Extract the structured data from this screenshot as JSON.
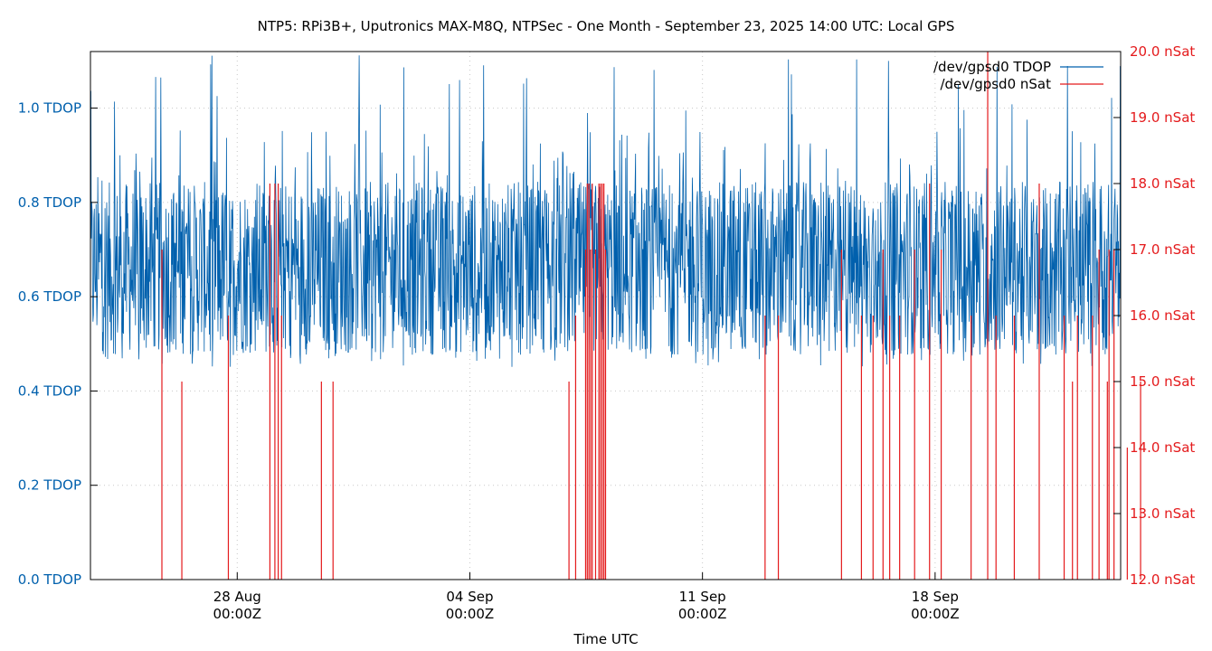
{
  "chart_data": {
    "type": "line",
    "title": "NTP5: RPi3B+, Uputronics MAX-M8Q, NTPSec - One Month - September 23, 2025 14:00 UTC: Local GPS",
    "xlabel": "Time UTC",
    "xlim": [
      "2025-08-23T14:00Z",
      "2025-09-23T14:00Z"
    ],
    "x_ticks": [
      {
        "date": "2025-08-28T00:00Z",
        "line1": "28 Aug",
        "line2": "00:00Z"
      },
      {
        "date": "2025-09-04T00:00Z",
        "line1": "04 Sep",
        "line2": "00:00Z"
      },
      {
        "date": "2025-09-11T00:00Z",
        "line1": "11 Sep",
        "line2": "00:00Z"
      },
      {
        "date": "2025-09-18T00:00Z",
        "line1": "18 Sep",
        "line2": "00:00Z"
      }
    ],
    "y_left": {
      "range": [
        0,
        1.12
      ],
      "color": "#0060ad",
      "ticks": [
        {
          "value": 0.0,
          "label": "0.0 TDOP"
        },
        {
          "value": 0.2,
          "label": "0.2 TDOP"
        },
        {
          "value": 0.4,
          "label": "0.4 TDOP"
        },
        {
          "value": 0.6,
          "label": "0.6 TDOP"
        },
        {
          "value": 0.8,
          "label": "0.8 TDOP"
        },
        {
          "value": 1.0,
          "label": "1.0 TDOP"
        }
      ]
    },
    "y_right": {
      "range": [
        12,
        20
      ],
      "color": "#e41a1c",
      "ticks": [
        {
          "value": 12,
          "label": "12.0 nSat"
        },
        {
          "value": 13,
          "label": "13.0 nSat"
        },
        {
          "value": 14,
          "label": "14.0 nSat"
        },
        {
          "value": 15,
          "label": "15.0 nSat"
        },
        {
          "value": 16,
          "label": "16.0 nSat"
        },
        {
          "value": 17,
          "label": "17.0 nSat"
        },
        {
          "value": 18,
          "label": "18.0 nSat"
        },
        {
          "value": 19,
          "label": "19.0 nSat"
        },
        {
          "value": 20,
          "label": "20.0 nSat"
        }
      ]
    },
    "legend_position": "top-right",
    "series": [
      {
        "name": "/dev/gpsd0 TDOP",
        "axis": "left",
        "color": "#0060ad",
        "description": "Noisy trace sampled continuously over the month, centered near 0.65 TDOP with spikes up to ~1.1",
        "baseline": 0.66,
        "typical_min": 0.5,
        "typical_max": 0.85,
        "peak": 1.12
      },
      {
        "name": "/dev/gpsd0 nSat",
        "axis": "right",
        "color": "#e41a1c",
        "description": "Number of satellites; held at 12 with brief excursions",
        "baseline": 12,
        "spikes": [
          {
            "day": 2.15,
            "value": 17
          },
          {
            "day": 2.75,
            "value": 15
          },
          {
            "day": 4.15,
            "value": 16
          },
          {
            "day": 5.4,
            "value": 18
          },
          {
            "day": 5.55,
            "value": 18
          },
          {
            "day": 5.65,
            "value": 18
          },
          {
            "day": 5.75,
            "value": 16
          },
          {
            "day": 6.95,
            "value": 15
          },
          {
            "day": 14.6,
            "value": 16
          },
          {
            "day": 14.9,
            "value": 17
          },
          {
            "day": 14.95,
            "value": 18
          },
          {
            "day": 15.0,
            "value": 18
          },
          {
            "day": 15.05,
            "value": 17
          },
          {
            "day": 15.1,
            "value": 18
          },
          {
            "day": 15.2,
            "value": 17
          },
          {
            "day": 15.3,
            "value": 18
          },
          {
            "day": 15.35,
            "value": 18
          },
          {
            "day": 15.4,
            "value": 18
          },
          {
            "day": 15.45,
            "value": 18
          },
          {
            "day": 15.5,
            "value": 17
          },
          {
            "day": 23.55,
            "value": 16
          },
          {
            "day": 23.85,
            "value": 17
          },
          {
            "day": 24.05,
            "value": 16
          },
          {
            "day": 24.35,
            "value": 16
          },
          {
            "day": 25.25,
            "value": 18
          },
          {
            "day": 25.6,
            "value": 17
          },
          {
            "day": 26.5,
            "value": 16
          },
          {
            "day": 27.8,
            "value": 16
          },
          {
            "day": 28.55,
            "value": 18
          },
          {
            "day": 29.3,
            "value": 16
          },
          {
            "day": 29.55,
            "value": 15
          },
          {
            "day": 29.7,
            "value": 16
          },
          {
            "day": 30.15,
            "value": 16
          },
          {
            "day": 30.35,
            "value": 17
          },
          {
            "day": 30.6,
            "value": 15
          },
          {
            "day": 30.65,
            "value": 17
          },
          {
            "day": 30.8,
            "value": 17
          },
          {
            "day": 31.2,
            "value": 14
          },
          {
            "day": 31.6,
            "value": 15
          }
        ],
        "spikes_axis_days": "days since 2025-08-23T14:00Z (approx.)",
        "extra_spikes": [
          {
            "day": 7.3,
            "value": 15
          },
          {
            "day": 14.4,
            "value": 15
          },
          {
            "day": 20.3,
            "value": 16
          },
          {
            "day": 20.7,
            "value": 16
          },
          {
            "day": 22.6,
            "value": 17
          },
          {
            "day": 23.2,
            "value": 16
          },
          {
            "day": 24.8,
            "value": 17
          },
          {
            "day": 27.0,
            "value": 20
          },
          {
            "day": 27.25,
            "value": 16
          }
        ]
      }
    ]
  }
}
